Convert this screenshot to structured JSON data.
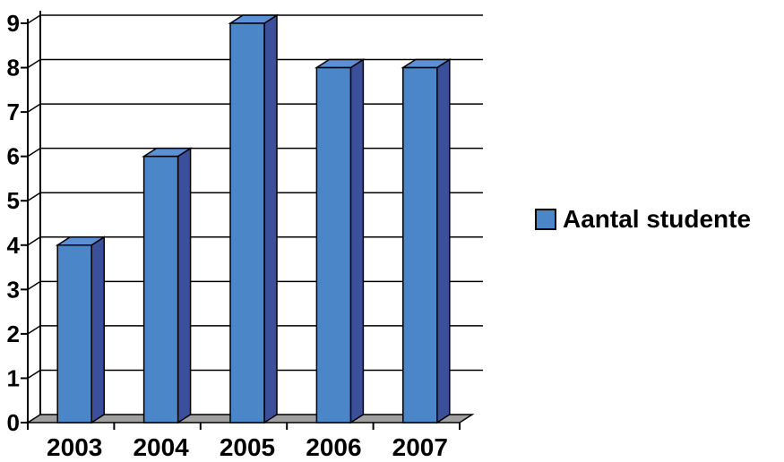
{
  "chart_data": {
    "type": "bar",
    "categories": [
      "2003",
      "2004",
      "2005",
      "2006",
      "2007"
    ],
    "series": [
      {
        "name": "Aantal studente",
        "values": [
          4,
          6,
          9,
          8,
          8
        ],
        "color": "#4a86c8"
      }
    ],
    "yticks": [
      "0",
      "1",
      "2",
      "3",
      "4",
      "5",
      "6",
      "7",
      "8",
      "9"
    ],
    "ylim": [
      0,
      9
    ],
    "grid": true,
    "legend_position": "right",
    "style_3d": true
  }
}
